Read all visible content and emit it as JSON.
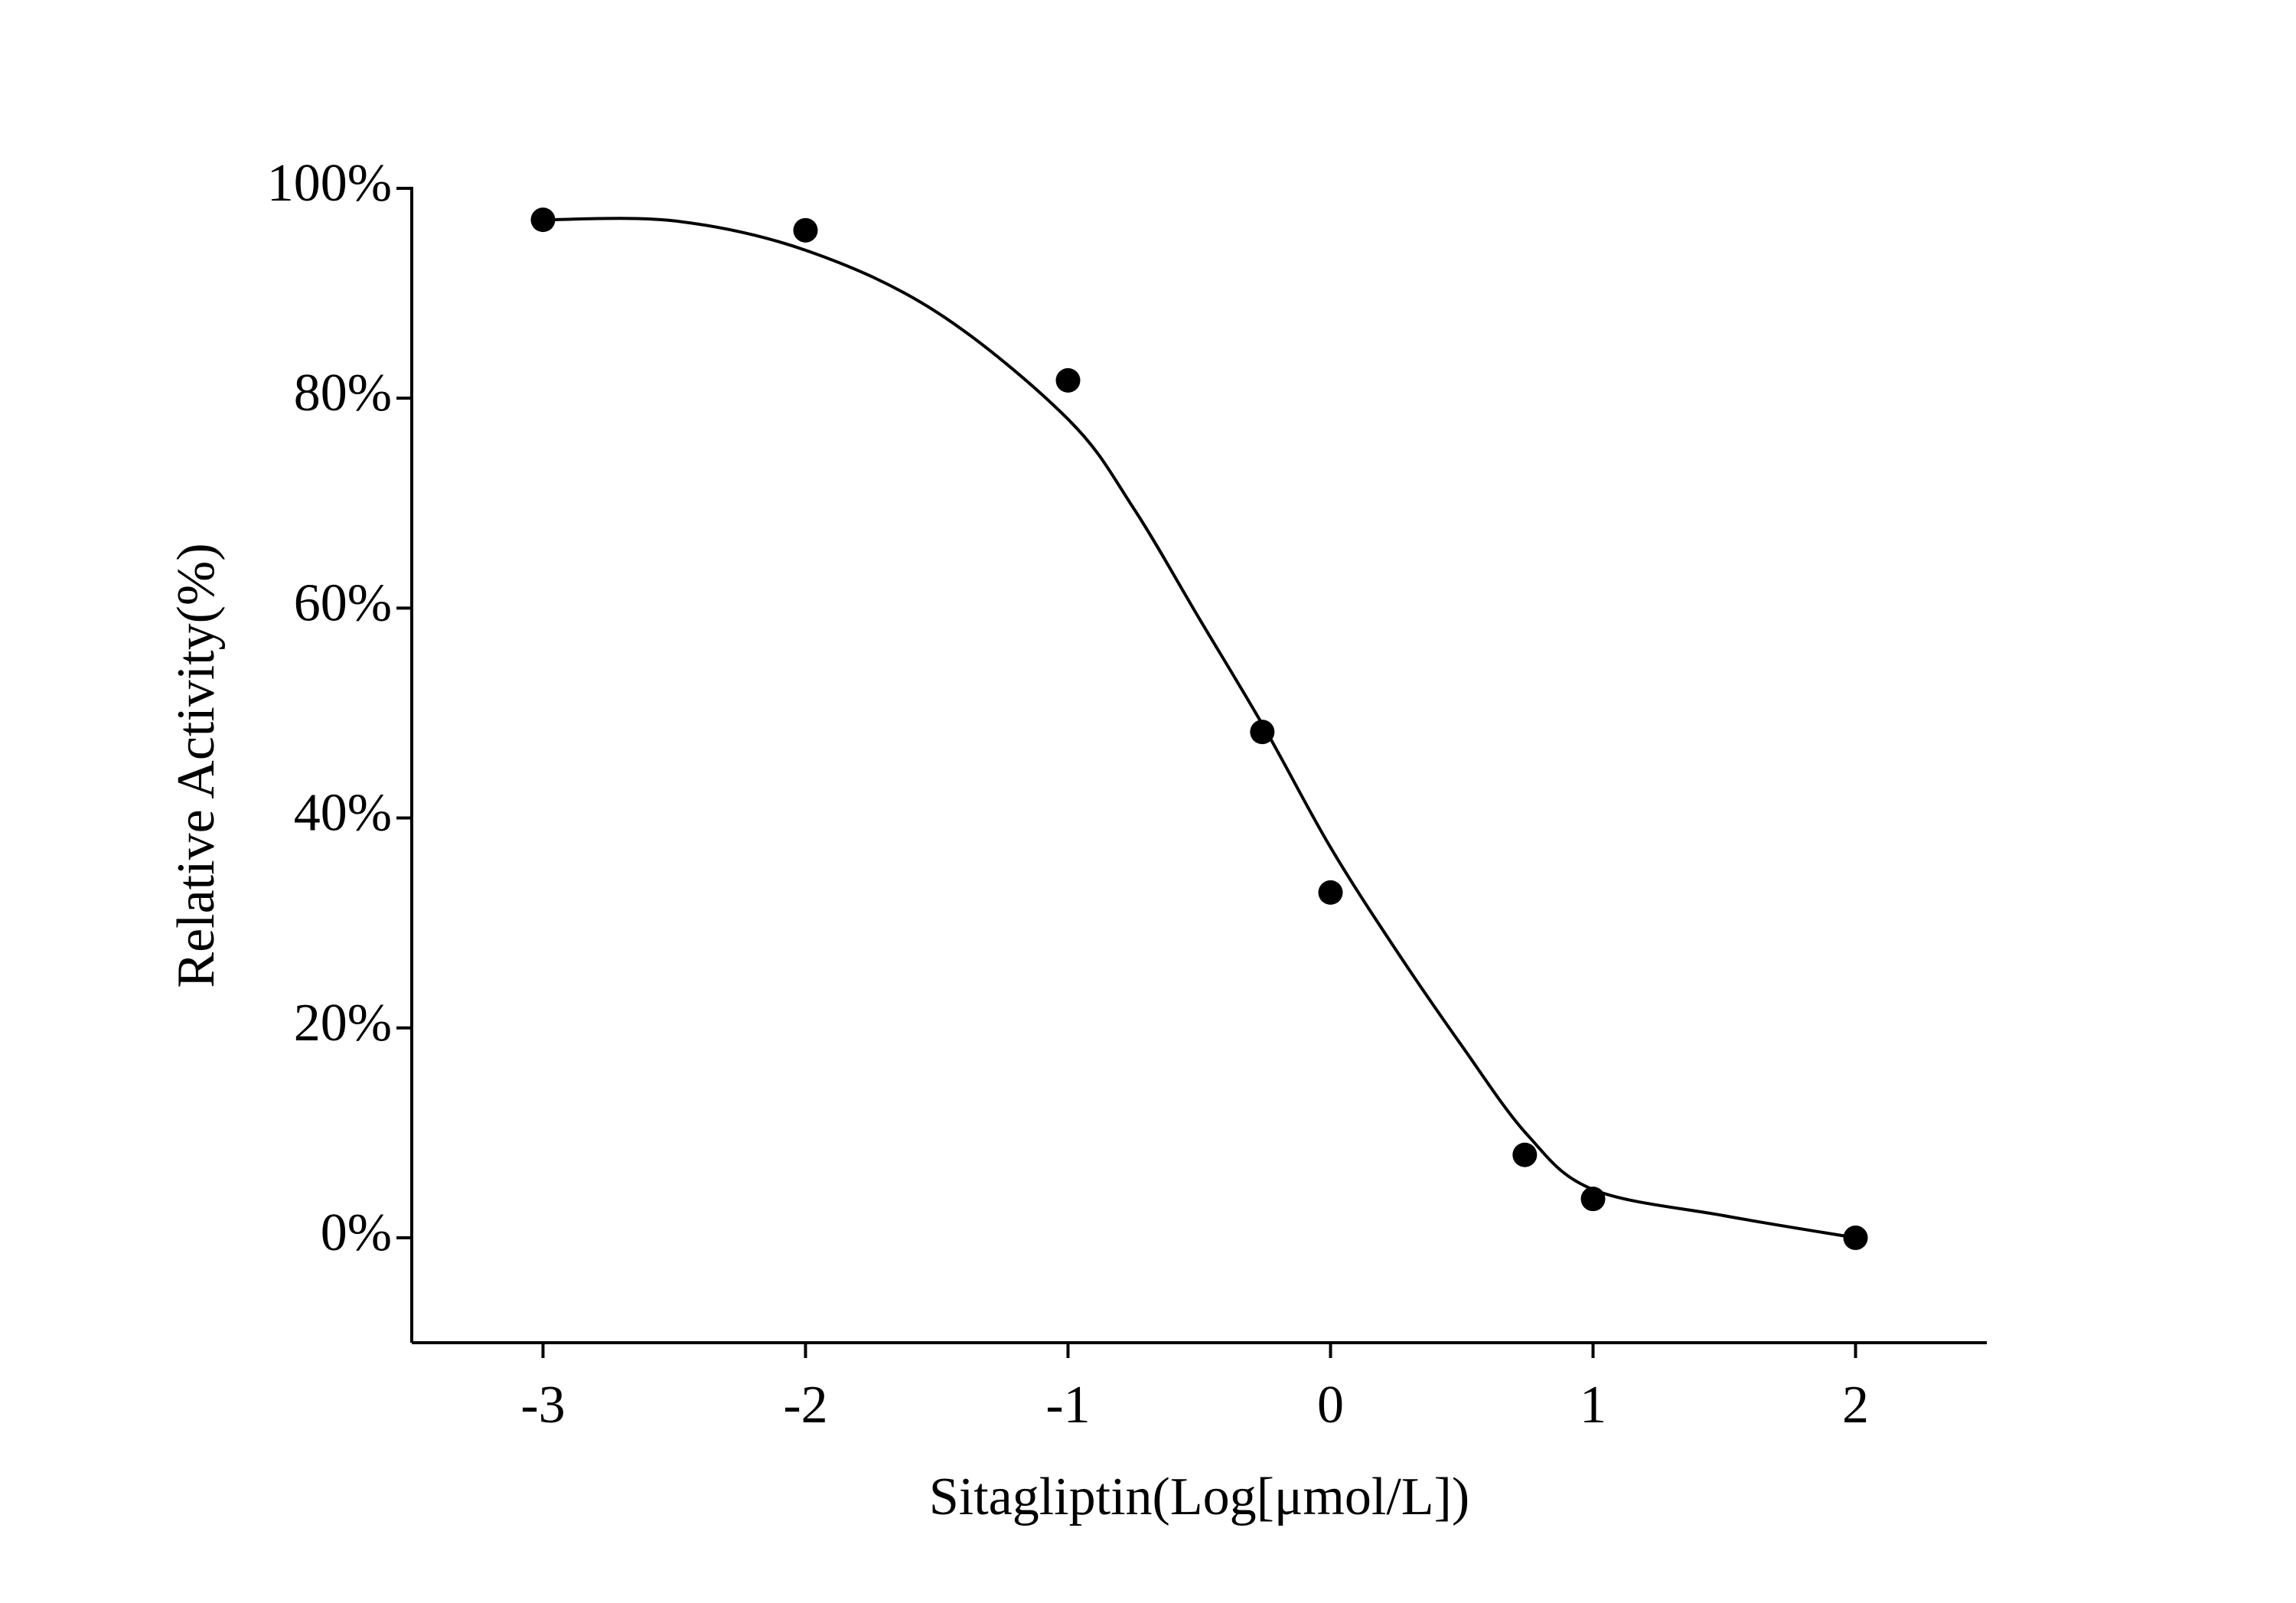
{
  "chart_data": {
    "type": "scatter",
    "x_label": "Sitagliptin(Log[μmol/L])",
    "y_label": "Relative Activity(%)",
    "xlim": [
      -3.5,
      2.5
    ],
    "xticks": [
      -3,
      -2,
      -1,
      0,
      1,
      2
    ],
    "ylim": [
      -10,
      100
    ],
    "yticks": [
      {
        "value": 0,
        "label": "0%"
      },
      {
        "value": 20,
        "label": "20%"
      },
      {
        "value": 40,
        "label": "40%"
      },
      {
        "value": 60,
        "label": "60%"
      },
      {
        "value": 80,
        "label": "80%"
      },
      {
        "value": 100,
        "label": "100%"
      }
    ],
    "series": [
      {
        "type": "scatter",
        "color": "#000000",
        "x": [
          -3,
          -2,
          -1,
          -0.26,
          0,
          0.74,
          1,
          2
        ],
        "values": [
          97,
          96,
          81.7,
          48.2,
          32.9,
          7.9,
          3.7,
          0
        ]
      },
      {
        "type": "line",
        "color": "#000000",
        "x": [
          -3,
          -2.5,
          -2,
          -1.5,
          -1,
          -0.75,
          -0.5,
          -0.25,
          0,
          0.25,
          0.5,
          0.75,
          1,
          1.5,
          2
        ],
        "values": [
          97,
          96.9,
          94.1,
          88.2,
          78,
          69.5,
          59,
          48.5,
          37.2,
          27.4,
          18.3,
          9.8,
          4.6,
          2.1,
          0
        ]
      }
    ]
  }
}
